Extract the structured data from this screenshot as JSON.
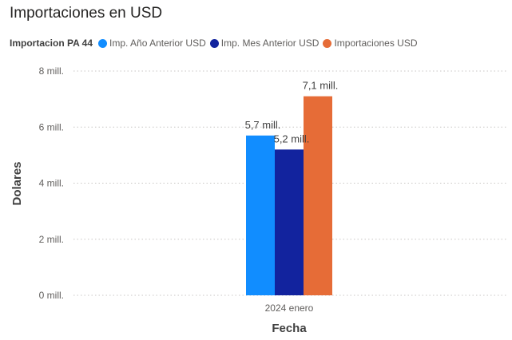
{
  "chart_data": {
    "type": "bar",
    "title": "Importaciones en USD",
    "legend_title": "Importacion PA 44",
    "legend_position": "top-left",
    "xlabel": "Fecha",
    "ylabel": "Dolares",
    "categories": [
      "2024 enero"
    ],
    "ylim": [
      0,
      8000000
    ],
    "yticks": [
      {
        "value": 0,
        "label": "0 mill."
      },
      {
        "value": 2000000,
        "label": "2 mill."
      },
      {
        "value": 4000000,
        "label": "4 mill."
      },
      {
        "value": 6000000,
        "label": "6 mill."
      },
      {
        "value": 8000000,
        "label": "8 mill."
      }
    ],
    "grid": true,
    "series": [
      {
        "name": "Imp. Año Anterior USD",
        "color": "#118DFF",
        "values": [
          5700000
        ],
        "data_labels": [
          "5,7 mill."
        ]
      },
      {
        "name": "Imp. Mes Anterior USD",
        "color": "#12239E",
        "values": [
          5200000
        ],
        "data_labels": [
          "5,2 mill."
        ]
      },
      {
        "name": "Importaciones USD",
        "color": "#E66C37",
        "values": [
          7100000
        ],
        "data_labels": [
          "7,1 mill."
        ]
      }
    ]
  }
}
